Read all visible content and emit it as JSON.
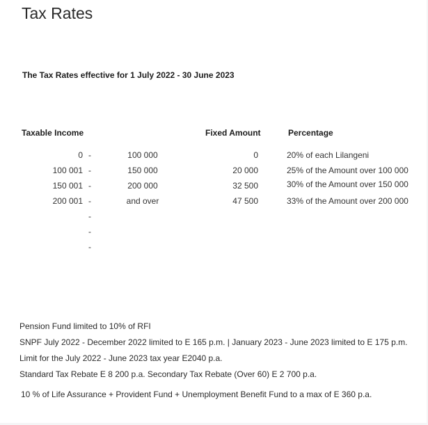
{
  "title": "Tax Rates",
  "subtitle": "The Tax Rates effective for 1 July 2022 - 30 June 2023",
  "headers": {
    "income": "Taxable Income",
    "fixed": "Fixed Amount",
    "percentage": "Percentage"
  },
  "rows": [
    {
      "from": "0",
      "dash": "-",
      "to": "100 000",
      "fixed": "0",
      "pct": "20% of each Lilangeni"
    },
    {
      "from": "100 001",
      "dash": "-",
      "to": "150 000",
      "fixed": "20 000",
      "pct": "25% of the Amount over 100 000"
    },
    {
      "from": "150 001",
      "dash": "-",
      "to": "200 000",
      "fixed": "32 500",
      "pct": "30% of the Amount over 150 000"
    },
    {
      "from": "200 001",
      "dash": "-",
      "to": "and over",
      "fixed": "47 500",
      "pct": "33% of the Amount over 200 000"
    },
    {
      "from": "",
      "dash": "-",
      "to": "",
      "fixed": "",
      "pct": ""
    },
    {
      "from": "",
      "dash": "-",
      "to": "",
      "fixed": "",
      "pct": ""
    },
    {
      "from": "",
      "dash": "-",
      "to": "",
      "fixed": "",
      "pct": ""
    }
  ],
  "notes": [
    "Pension Fund limited to 10% of RFI",
    "SNPF July 2022 - December 2022 limited to E 165 p.m. | January 2023 - June 2023 limited to E 175 p.m.",
    "Limit for the July 2022 - June 2023 tax year E2040 p.a.",
    "Standard Tax Rebate E 8 200 p.a. Secondary Tax Rebate (Over 60) E 2 700 p.a.",
    "10 % of Life Assurance + Provident Fund + Unemployment Benefit Fund to a max of E 360 p.a."
  ]
}
